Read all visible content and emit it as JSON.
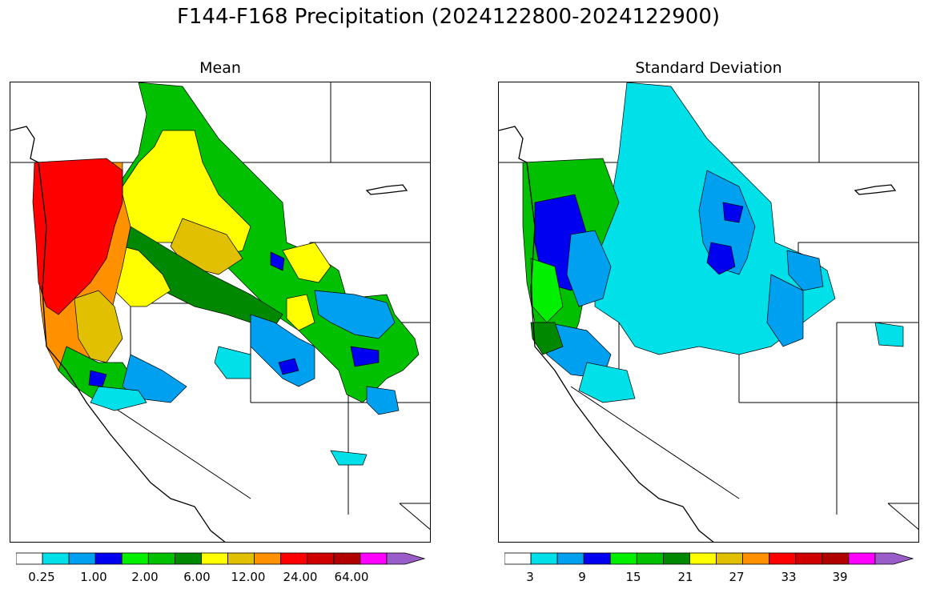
{
  "title": "F144-F168 Precipitation (2024122800-2024122900)",
  "panels": [
    {
      "id": "mean",
      "title": "Mean",
      "colorbar": {
        "colors": [
          "#ffffff",
          "#00e0e8",
          "#00a0f0",
          "#0000f0",
          "#00f000",
          "#00c000",
          "#008800",
          "#ffff00",
          "#e0c000",
          "#ff9000",
          "#ff0000",
          "#d00000",
          "#b00000",
          "#ff00ff",
          "#9a5cc8"
        ],
        "labels": [
          "0.25",
          "1.00",
          "2.00",
          "6.00",
          "12.00",
          "24.00",
          "64.00"
        ],
        "extend": "max"
      }
    },
    {
      "id": "std",
      "title": "Standard Deviation",
      "colorbar": {
        "colors": [
          "#ffffff",
          "#00e0e8",
          "#00a0f0",
          "#0000f0",
          "#00f000",
          "#00c000",
          "#008800",
          "#ffff00",
          "#e0c000",
          "#ff9000",
          "#ff0000",
          "#d00000",
          "#b00000",
          "#ff00ff",
          "#9a5cc8"
        ],
        "labels": [
          "3",
          "9",
          "15",
          "21",
          "27",
          "33",
          "39"
        ],
        "extend": "max"
      }
    }
  ]
}
